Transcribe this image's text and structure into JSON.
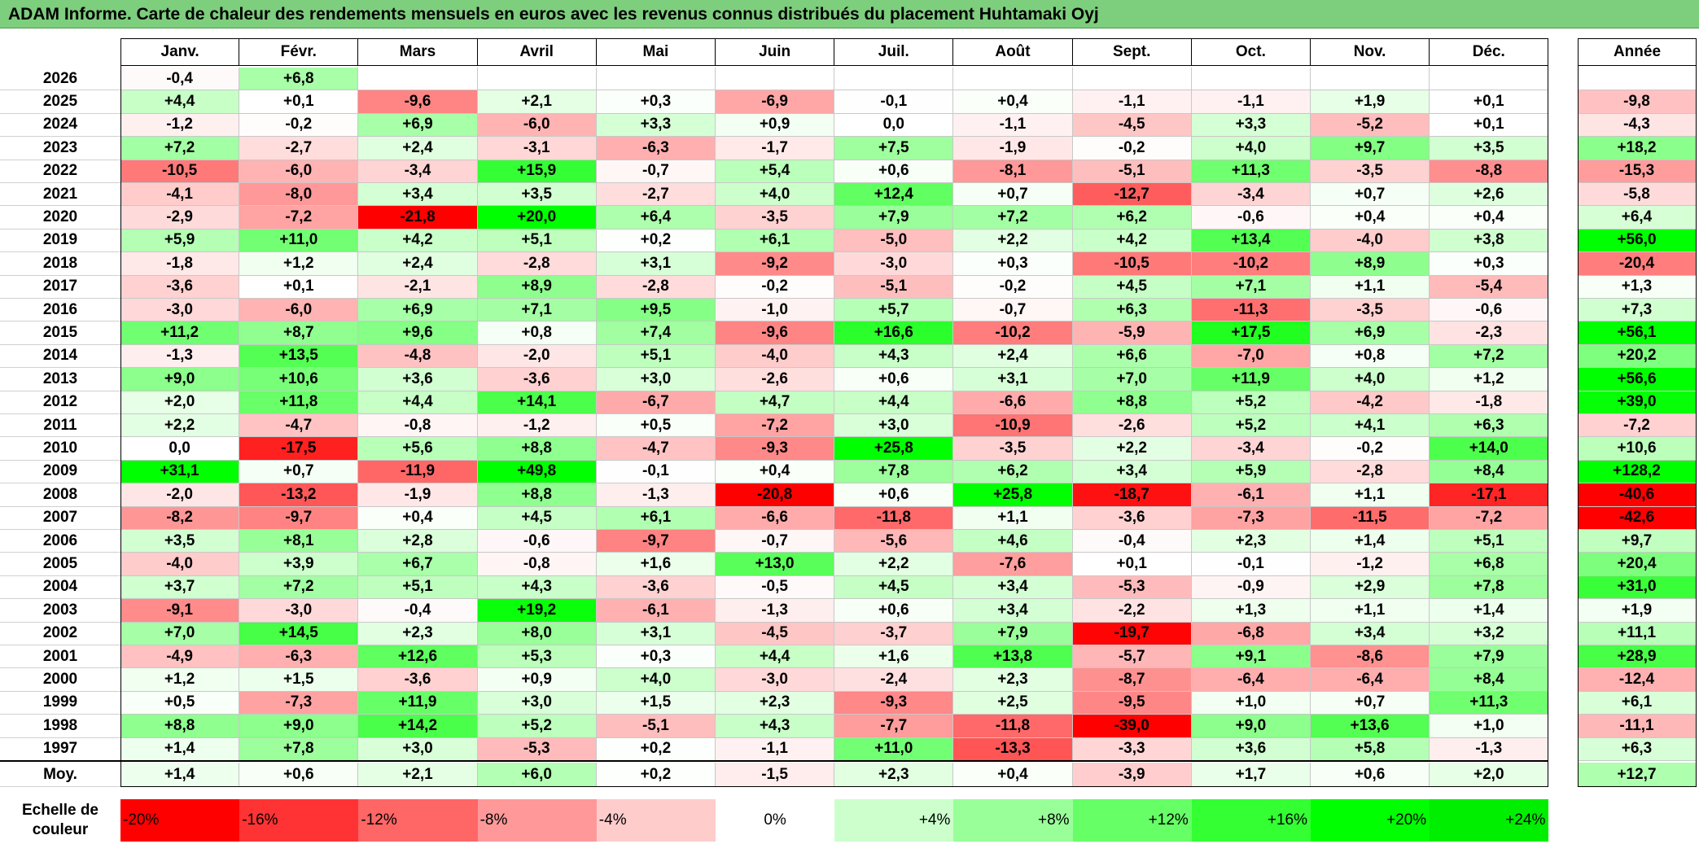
{
  "title": "ADAM Informe. Carte de chaleur des rendements mensuels en euros avec les revenus connus distribués du placement Huhtamaki Oyj",
  "chart_data": {
    "type": "heatmap",
    "title": "ADAM Informe. Carte de chaleur des rendements mensuels en euros avec les revenus connus distribués du placement Huhtamaki Oyj",
    "columns": [
      "Janv.",
      "Févr.",
      "Mars",
      "Avril",
      "Mai",
      "Juin",
      "Juil.",
      "Août",
      "Sept.",
      "Oct.",
      "Nov.",
      "Déc."
    ],
    "annual_header": "Année",
    "rows": [
      {
        "year": "2026",
        "values": [
          "-0,4",
          "+6,8",
          "",
          "",
          "",
          "",
          "",
          "",
          "",
          "",
          "",
          ""
        ],
        "annual": ""
      },
      {
        "year": "2025",
        "values": [
          "+4,4",
          "+0,1",
          "-9,6",
          "+2,1",
          "+0,3",
          "-6,9",
          "-0,1",
          "+0,4",
          "-1,1",
          "-1,1",
          "+1,9",
          "+0,1"
        ],
        "annual": "-9,8"
      },
      {
        "year": "2024",
        "values": [
          "-1,2",
          "-0,2",
          "+6,9",
          "-6,0",
          "+3,3",
          "+0,9",
          "0,0",
          "-1,1",
          "-4,5",
          "+3,3",
          "-5,2",
          "+0,1"
        ],
        "annual": "-4,3"
      },
      {
        "year": "2023",
        "values": [
          "+7,2",
          "-2,7",
          "+2,4",
          "-3,1",
          "-6,3",
          "-1,7",
          "+7,5",
          "-1,9",
          "-0,2",
          "+4,0",
          "+9,7",
          "+3,5"
        ],
        "annual": "+18,2"
      },
      {
        "year": "2022",
        "values": [
          "-10,5",
          "-6,0",
          "-3,4",
          "+15,9",
          "-0,7",
          "+5,4",
          "+0,6",
          "-8,1",
          "-5,1",
          "+11,3",
          "-3,5",
          "-8,8"
        ],
        "annual": "-15,3"
      },
      {
        "year": "2021",
        "values": [
          "-4,1",
          "-8,0",
          "+3,4",
          "+3,5",
          "-2,7",
          "+4,0",
          "+12,4",
          "+0,7",
          "-12,7",
          "-3,4",
          "+0,7",
          "+2,6"
        ],
        "annual": "-5,8"
      },
      {
        "year": "2020",
        "values": [
          "-2,9",
          "-7,2",
          "-21,8",
          "+20,0",
          "+6,4",
          "-3,5",
          "+7,9",
          "+7,2",
          "+6,2",
          "-0,6",
          "+0,4",
          "+0,4"
        ],
        "annual": "+6,4"
      },
      {
        "year": "2019",
        "values": [
          "+5,9",
          "+11,0",
          "+4,2",
          "+5,1",
          "+0,2",
          "+6,1",
          "-5,0",
          "+2,2",
          "+4,2",
          "+13,4",
          "-4,0",
          "+3,8"
        ],
        "annual": "+56,0"
      },
      {
        "year": "2018",
        "values": [
          "-1,8",
          "+1,2",
          "+2,4",
          "-2,8",
          "+3,1",
          "-9,2",
          "-3,0",
          "+0,3",
          "-10,5",
          "-10,2",
          "+8,9",
          "+0,3"
        ],
        "annual": "-20,4"
      },
      {
        "year": "2017",
        "values": [
          "-3,6",
          "+0,1",
          "-2,1",
          "+8,9",
          "-2,8",
          "-0,2",
          "-5,1",
          "-0,2",
          "+4,5",
          "+7,1",
          "+1,1",
          "-5,4"
        ],
        "annual": "+1,3"
      },
      {
        "year": "2016",
        "values": [
          "-3,0",
          "-6,0",
          "+6,9",
          "+7,1",
          "+9,5",
          "-1,0",
          "+5,7",
          "-0,7",
          "+6,3",
          "-11,3",
          "-3,5",
          "-0,6"
        ],
        "annual": "+7,3"
      },
      {
        "year": "2015",
        "values": [
          "+11,2",
          "+8,7",
          "+9,6",
          "+0,8",
          "+7,4",
          "-9,6",
          "+16,6",
          "-10,2",
          "-5,9",
          "+17,5",
          "+6,9",
          "-2,3"
        ],
        "annual": "+56,1"
      },
      {
        "year": "2014",
        "values": [
          "-1,3",
          "+13,5",
          "-4,8",
          "-2,0",
          "+5,1",
          "-4,0",
          "+4,3",
          "+2,4",
          "+6,6",
          "-7,0",
          "+0,8",
          "+7,2"
        ],
        "annual": "+20,2"
      },
      {
        "year": "2013",
        "values": [
          "+9,0",
          "+10,6",
          "+3,6",
          "-3,6",
          "+3,0",
          "-2,6",
          "+0,6",
          "+3,1",
          "+7,0",
          "+11,9",
          "+4,0",
          "+1,2"
        ],
        "annual": "+56,6"
      },
      {
        "year": "2012",
        "values": [
          "+2,0",
          "+11,8",
          "+4,4",
          "+14,1",
          "-6,7",
          "+4,7",
          "+4,4",
          "-6,6",
          "+8,8",
          "+5,2",
          "-4,2",
          "-1,8"
        ],
        "annual": "+39,0"
      },
      {
        "year": "2011",
        "values": [
          "+2,2",
          "-4,7",
          "-0,8",
          "-1,2",
          "+0,5",
          "-7,2",
          "+3,0",
          "-10,9",
          "-2,6",
          "+5,2",
          "+4,1",
          "+6,3"
        ],
        "annual": "-7,2"
      },
      {
        "year": "2010",
        "values": [
          "0,0",
          "-17,5",
          "+5,6",
          "+8,8",
          "-4,7",
          "-9,3",
          "+25,8",
          "-3,5",
          "+2,2",
          "-3,4",
          "-0,2",
          "+14,0"
        ],
        "annual": "+10,6"
      },
      {
        "year": "2009",
        "values": [
          "+31,1",
          "+0,7",
          "-11,9",
          "+49,8",
          "-0,1",
          "+0,4",
          "+7,8",
          "+6,2",
          "+3,4",
          "+5,9",
          "-2,8",
          "+8,4"
        ],
        "annual": "+128,2"
      },
      {
        "year": "2008",
        "values": [
          "-2,0",
          "-13,2",
          "-1,9",
          "+8,8",
          "-1,3",
          "-20,8",
          "+0,6",
          "+25,8",
          "-18,7",
          "-6,1",
          "+1,1",
          "-17,1"
        ],
        "annual": "-40,6"
      },
      {
        "year": "2007",
        "values": [
          "-8,2",
          "-9,7",
          "+0,4",
          "+4,5",
          "+6,1",
          "-6,6",
          "-11,8",
          "+1,1",
          "-3,6",
          "-7,3",
          "-11,5",
          "-7,2"
        ],
        "annual": "-42,6"
      },
      {
        "year": "2006",
        "values": [
          "+3,5",
          "+8,1",
          "+2,8",
          "-0,6",
          "-9,7",
          "-0,7",
          "-5,6",
          "+4,6",
          "-0,4",
          "+2,3",
          "+1,4",
          "+5,1"
        ],
        "annual": "+9,7"
      },
      {
        "year": "2005",
        "values": [
          "-4,0",
          "+3,9",
          "+6,7",
          "-0,8",
          "+1,6",
          "+13,0",
          "+2,2",
          "-7,6",
          "+0,1",
          "-0,1",
          "-1,2",
          "+6,8"
        ],
        "annual": "+20,4"
      },
      {
        "year": "2004",
        "values": [
          "+3,7",
          "+7,2",
          "+5,1",
          "+4,3",
          "-3,6",
          "-0,5",
          "+4,5",
          "+3,4",
          "-5,3",
          "-0,9",
          "+2,9",
          "+7,8"
        ],
        "annual": "+31,0"
      },
      {
        "year": "2003",
        "values": [
          "-9,1",
          "-3,0",
          "-0,4",
          "+19,2",
          "-6,1",
          "-1,3",
          "+0,6",
          "+3,4",
          "-2,2",
          "+1,3",
          "+1,1",
          "+1,4"
        ],
        "annual": "+1,9"
      },
      {
        "year": "2002",
        "values": [
          "+7,0",
          "+14,5",
          "+2,3",
          "+8,0",
          "+3,1",
          "-4,5",
          "-3,7",
          "+7,9",
          "-19,7",
          "-6,8",
          "+3,4",
          "+3,2"
        ],
        "annual": "+11,1"
      },
      {
        "year": "2001",
        "values": [
          "-4,9",
          "-6,3",
          "+12,6",
          "+5,3",
          "+0,3",
          "+4,4",
          "+1,6",
          "+13,8",
          "-5,7",
          "+9,1",
          "-8,6",
          "+7,9"
        ],
        "annual": "+28,9"
      },
      {
        "year": "2000",
        "values": [
          "+1,2",
          "+1,5",
          "-3,6",
          "+0,9",
          "+4,0",
          "-3,0",
          "-2,4",
          "+2,3",
          "-8,7",
          "-6,4",
          "-6,4",
          "+8,4"
        ],
        "annual": "-12,4"
      },
      {
        "year": "1999",
        "values": [
          "+0,5",
          "-7,3",
          "+11,9",
          "+3,0",
          "+1,5",
          "+2,3",
          "-9,3",
          "+2,5",
          "-9,5",
          "+1,0",
          "+0,7",
          "+11,3"
        ],
        "annual": "+6,1"
      },
      {
        "year": "1998",
        "values": [
          "+8,8",
          "+9,0",
          "+14,2",
          "+5,2",
          "-5,1",
          "+4,3",
          "-7,7",
          "-11,8",
          "-39,0",
          "+9,0",
          "+13,6",
          "+1,0"
        ],
        "annual": "-11,1"
      },
      {
        "year": "1997",
        "values": [
          "+1,4",
          "+7,8",
          "+3,0",
          "-5,3",
          "+0,2",
          "-1,1",
          "+11,0",
          "-13,3",
          "-3,3",
          "+3,6",
          "+5,8",
          "-1,3"
        ],
        "annual": "+6,3"
      }
    ],
    "average": {
      "label": "Moy.",
      "values": [
        "+1,4",
        "+0,6",
        "+2,1",
        "+6,0",
        "+0,2",
        "-1,5",
        "+2,3",
        "+0,4",
        "-3,9",
        "+1,7",
        "+0,6",
        "+2,0"
      ],
      "annual": "+12,7"
    },
    "color_scale": {
      "label": "Echelle de couleur",
      "stops": [
        {
          "label": "-20%",
          "value": -20,
          "color": "#ff0000"
        },
        {
          "label": "-16%",
          "value": -16,
          "color": "#ff3333"
        },
        {
          "label": "-12%",
          "value": -12,
          "color": "#ff6666"
        },
        {
          "label": "-8%",
          "value": -8,
          "color": "#ff9999"
        },
        {
          "label": "-4%",
          "value": -4,
          "color": "#ffcccc"
        },
        {
          "label": "0%",
          "value": 0,
          "color": "#ffffff"
        },
        {
          "label": "+4%",
          "value": 4,
          "color": "#ccffcc"
        },
        {
          "label": "+8%",
          "value": 8,
          "color": "#99ff99"
        },
        {
          "label": "+12%",
          "value": 12,
          "color": "#66ff66"
        },
        {
          "label": "+16%",
          "value": 16,
          "color": "#33ff33"
        },
        {
          "label": "+20%",
          "value": 20,
          "color": "#00ff00"
        },
        {
          "label": "+24%",
          "value": 24,
          "color": "#00ee00"
        }
      ]
    }
  }
}
